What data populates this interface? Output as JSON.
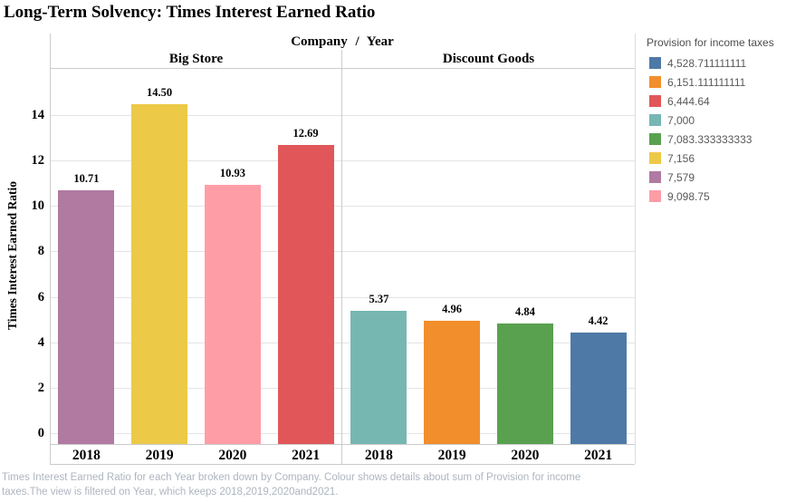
{
  "chart_data": {
    "type": "bar",
    "title": "Long-Term Solvency: Times Interest Earned Ratio",
    "column_header": "Company / Year",
    "ylabel": "Times Interest Earned Ratio",
    "yticks": [
      0,
      2,
      4,
      6,
      8,
      10,
      12,
      14
    ],
    "ylim": [
      0,
      16
    ],
    "grid": "horizontal",
    "legend_position": "right",
    "panels": [
      {
        "company": "Big Store",
        "years": [
          "2018",
          "2019",
          "2020",
          "2021"
        ],
        "values": [
          10.71,
          14.5,
          10.93,
          12.69
        ],
        "value_labels": [
          "10.71",
          "14.50",
          "10.93",
          "12.69"
        ],
        "bar_colors": [
          "#b07aa1",
          "#edc948",
          "#ff9da7",
          "#e15759"
        ]
      },
      {
        "company": "Discount Goods",
        "years": [
          "2018",
          "2019",
          "2020",
          "2021"
        ],
        "values": [
          5.37,
          4.96,
          4.84,
          4.42
        ],
        "value_labels": [
          "5.37",
          "4.96",
          "4.84",
          "4.42"
        ],
        "bar_colors": [
          "#76b7b2",
          "#f28e2b",
          "#59a14f",
          "#4e79a7"
        ]
      }
    ],
    "legend": {
      "title": "Provision for income taxes",
      "items": [
        {
          "label": "4,528.711111111",
          "color": "#4e79a7"
        },
        {
          "label": "6,151.111111111",
          "color": "#f28e2b"
        },
        {
          "label": "6,444.64",
          "color": "#e15759"
        },
        {
          "label": "7,000",
          "color": "#76b7b2"
        },
        {
          "label": "7,083.333333333",
          "color": "#59a14f"
        },
        {
          "label": "7,156",
          "color": "#edc948"
        },
        {
          "label": "7,579",
          "color": "#b07aa1"
        },
        {
          "label": "9,098.75",
          "color": "#ff9da7"
        }
      ]
    },
    "caption_lines": [
      "Times Interest Earned Ratio for each Year broken down by Company. Colour shows details about sum of Provision for income",
      "taxes.The view is filtered on Year, which keeps 2018,2019,2020and2021."
    ]
  }
}
